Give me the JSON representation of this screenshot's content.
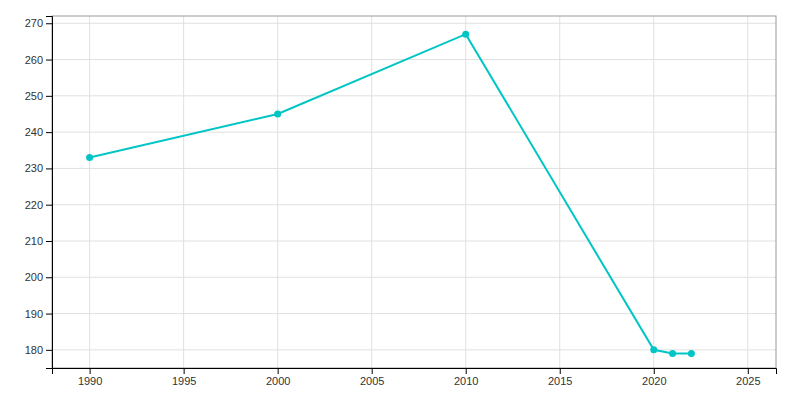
{
  "chart_data": {
    "type": "line",
    "x": [
      1990,
      2000,
      2010,
      2020,
      2021,
      2022
    ],
    "values": [
      233,
      245,
      267,
      180,
      179,
      179
    ],
    "color": "#00C5C5",
    "marker": "circle",
    "xlim": [
      1988,
      2026.5
    ],
    "ylim": [
      175,
      272
    ],
    "xticks": [
      1990,
      1995,
      2000,
      2005,
      2010,
      2015,
      2020,
      2025
    ],
    "yticks": [
      180,
      190,
      200,
      210,
      220,
      230,
      240,
      250,
      260,
      270
    ],
    "grid": true
  }
}
